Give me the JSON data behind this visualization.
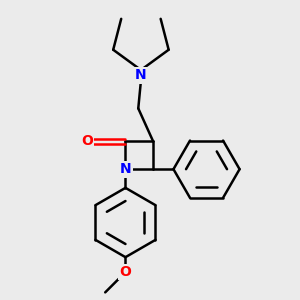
{
  "bg_color": "#ebebeb",
  "bond_color": "#000000",
  "N_color": "#0000ff",
  "O_color": "#ff0000",
  "bond_width": 1.8,
  "figsize": [
    3.0,
    3.0
  ],
  "dpi": 100,
  "xlim": [
    0.5,
    5.5
  ],
  "ylim": [
    0.2,
    5.8
  ]
}
